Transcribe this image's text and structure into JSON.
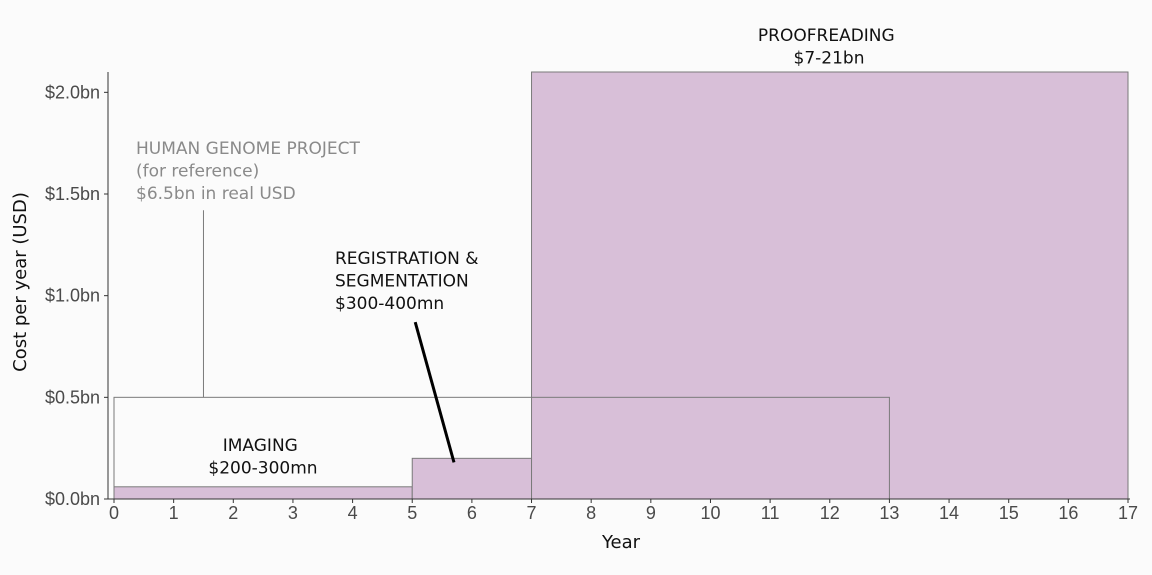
{
  "chart_data": {
    "type": "area",
    "xlabel": "Year",
    "ylabel": "Cost per year (USD)",
    "xlim": [
      0,
      17
    ],
    "ylim": [
      0,
      2.1
    ],
    "x_ticks": [
      "0",
      "1",
      "2",
      "3",
      "4",
      "5",
      "6",
      "7",
      "8",
      "9",
      "10",
      "11",
      "12",
      "13",
      "14",
      "15",
      "16",
      "17"
    ],
    "y_ticks": [
      {
        "value": 0.0,
        "label": "$0.0bn"
      },
      {
        "value": 0.5,
        "label": "$0.5bn"
      },
      {
        "value": 1.0,
        "label": "$1.0bn"
      },
      {
        "value": 1.5,
        "label": "$1.5bn"
      },
      {
        "value": 2.0,
        "label": "$2.0bn"
      }
    ],
    "grid": false,
    "fill_color": "#d8bfd8",
    "stroke_color": "#7a7a7a",
    "segments": [
      {
        "x_start": 0,
        "x_end": 5,
        "y": 0.06
      },
      {
        "x_start": 5,
        "x_end": 7,
        "y": 0.2
      },
      {
        "x_start": 7,
        "x_end": 17,
        "y": 2.1
      }
    ],
    "reference_box": {
      "x_start": 0,
      "x_end": 13,
      "y": 0.5,
      "color": "#7a7a7a"
    },
    "annotations": {
      "hgp": {
        "lines": [
          "HUMAN GENOME PROJECT",
          "(for reference)",
          "$6.5bn in real USD"
        ],
        "pointer_x": 1.5,
        "pointer_from_y": 1.42,
        "pointer_to_y": 0.5
      },
      "imaging": {
        "lines": [
          "IMAGING",
          "$200-300mn"
        ]
      },
      "registration": {
        "lines": [
          "REGISTRATION &",
          "SEGMENTATION",
          "$300-400mn"
        ],
        "pointer_from": [
          5.05,
          0.87
        ],
        "pointer_to": [
          5.7,
          0.18
        ]
      },
      "proofreading": {
        "lines": [
          "PROOFREADING",
          "$7-21bn"
        ]
      }
    }
  }
}
